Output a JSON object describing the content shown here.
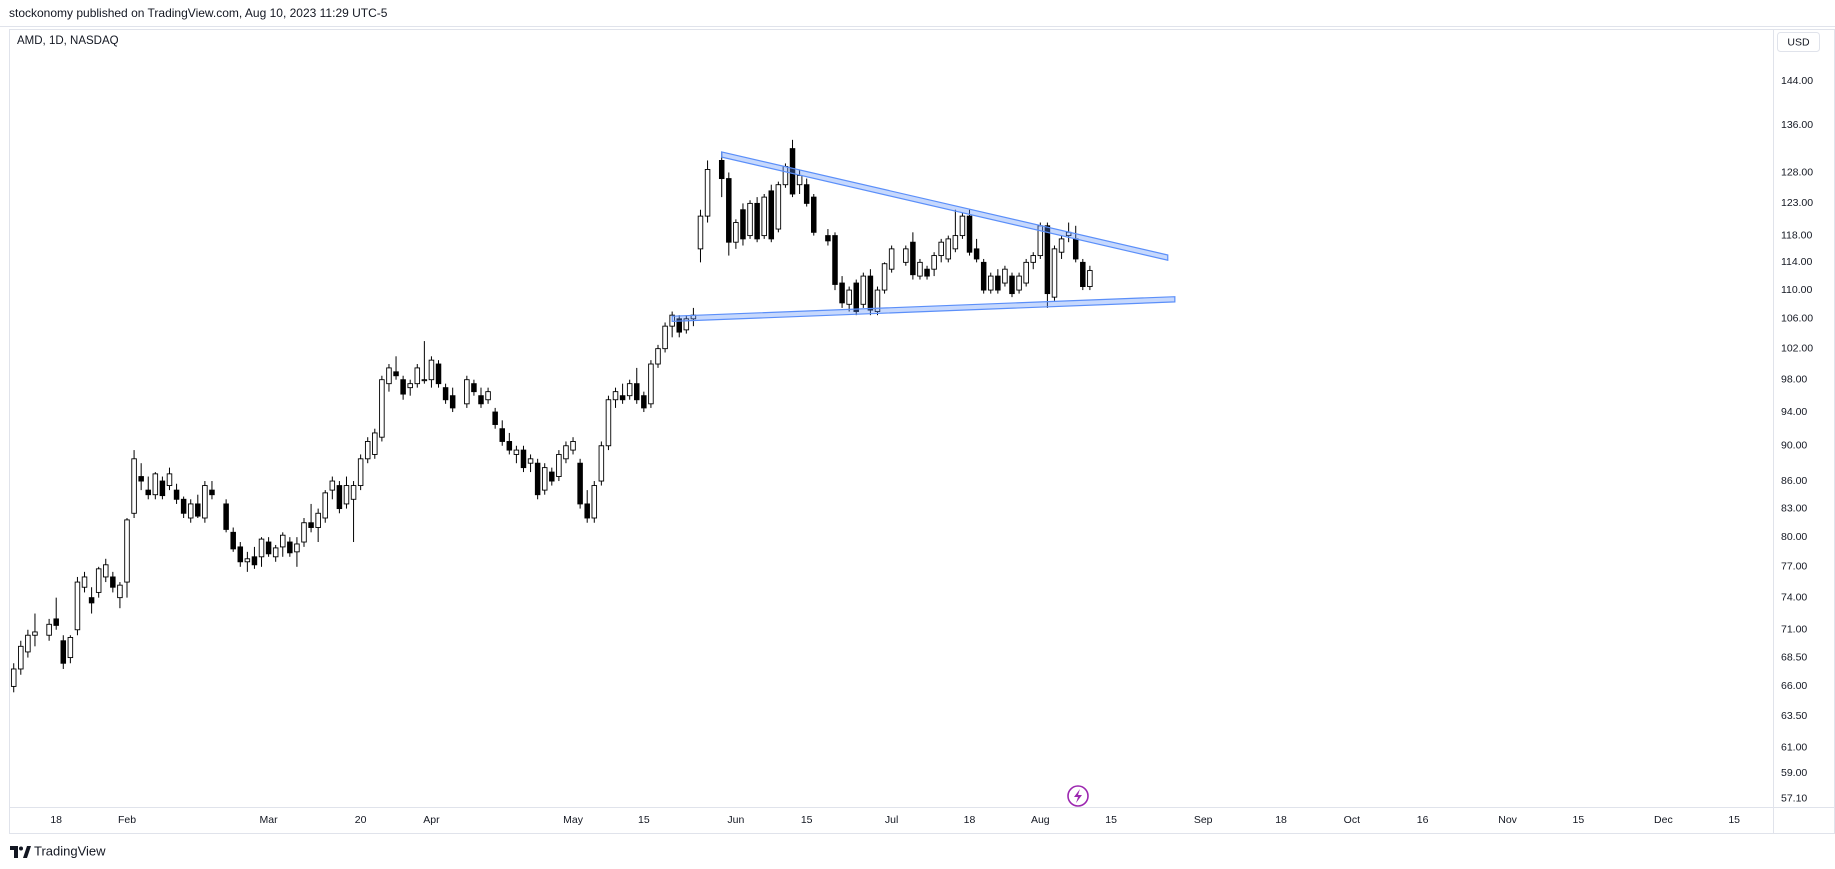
{
  "header": {
    "text": "stockonomy published on TradingView.com, Aug 10, 2023 11:29 UTC-5"
  },
  "chart_data": {
    "type": "candlestick",
    "title": "AMD, 1D, NASDAQ",
    "currency": "USD",
    "x": [
      "01-10",
      "01-11",
      "01-12",
      "01-13",
      "01-17",
      "01-18",
      "01-19",
      "01-20",
      "01-23",
      "01-24",
      "01-25",
      "01-26",
      "01-27",
      "01-30",
      "01-31",
      "02-01",
      "02-02",
      "02-03",
      "02-06",
      "02-07",
      "02-08",
      "02-09",
      "02-10",
      "02-13",
      "02-14",
      "02-15",
      "02-16",
      "02-17",
      "02-21",
      "02-22",
      "02-23",
      "02-24",
      "02-27",
      "02-28",
      "03-01",
      "03-02",
      "03-03",
      "03-06",
      "03-07",
      "03-08",
      "03-09",
      "03-10",
      "03-13",
      "03-14",
      "03-15",
      "03-16",
      "03-17",
      "03-20",
      "03-21",
      "03-22",
      "03-23",
      "03-24",
      "03-27",
      "03-28",
      "03-29",
      "03-30",
      "03-31",
      "04-03",
      "04-04",
      "04-05",
      "04-06",
      "04-10",
      "04-11",
      "04-12",
      "04-13",
      "04-14",
      "04-17",
      "04-18",
      "04-19",
      "04-20",
      "04-21",
      "04-24",
      "04-25",
      "04-26",
      "04-27",
      "04-28",
      "05-01",
      "05-02",
      "05-03",
      "05-04",
      "05-05",
      "05-08",
      "05-09",
      "05-10",
      "05-11",
      "05-12",
      "05-15",
      "05-16",
      "05-17",
      "05-18",
      "05-19",
      "05-22",
      "05-23",
      "05-24",
      "05-25",
      "05-26",
      "05-30",
      "05-31",
      "06-01",
      "06-02",
      "06-05",
      "06-06",
      "06-07",
      "06-08",
      "06-09",
      "06-12",
      "06-13",
      "06-14",
      "06-15",
      "06-16",
      "06-20",
      "06-21",
      "06-22",
      "06-23",
      "06-26",
      "06-27",
      "06-28",
      "06-29",
      "06-30",
      "07-03",
      "07-05",
      "07-06",
      "07-07",
      "07-10",
      "07-11",
      "07-12",
      "07-13",
      "07-14",
      "07-17",
      "07-18",
      "07-19",
      "07-20",
      "07-21",
      "07-24",
      "07-25",
      "07-26",
      "07-27",
      "07-28",
      "07-31",
      "08-01",
      "08-02",
      "08-03",
      "08-04",
      "08-07",
      "08-08",
      "08-09",
      "08-10"
    ],
    "open": [
      66,
      67.5,
      69,
      70.5,
      70.5,
      72,
      70,
      68.5,
      71,
      75,
      74,
      74.5,
      76,
      76,
      74,
      75.5,
      82.5,
      86.5,
      85,
      84.5,
      86,
      85.5,
      85,
      84,
      82,
      83.5,
      82,
      85,
      83.5,
      80.5,
      79,
      77.5,
      78,
      78,
      79.5,
      78,
      79,
      79.5,
      78.5,
      79.5,
      81.5,
      81,
      82,
      85,
      85.5,
      83.5,
      84,
      85.5,
      88.5,
      89,
      91,
      97.5,
      99,
      98,
      97,
      97.5,
      98,
      98,
      100,
      97,
      96,
      95,
      97.5,
      96,
      95.5,
      94,
      92,
      90.5,
      89,
      89.5,
      88,
      88,
      85,
      87,
      86.5,
      88.5,
      89.5,
      88,
      83.5,
      82,
      86,
      90,
      95.5,
      96,
      96,
      97.5,
      96,
      95,
      100,
      102,
      105,
      106,
      104.5,
      106,
      116,
      121,
      130,
      127,
      117,
      122,
      118,
      123,
      118,
      125,
      119,
      126,
      132,
      126,
      126,
      124,
      118,
      118,
      111,
      108,
      111,
      108,
      112,
      107,
      110,
      113,
      114,
      117,
      112,
      113,
      113,
      115,
      114.5,
      116,
      118,
      121,
      116,
      114,
      110,
      112,
      111,
      112,
      110,
      111,
      114,
      115,
      119.5,
      109,
      115.5,
      118,
      117.5,
      114,
      110.5
    ],
    "high": [
      68,
      70,
      71,
      72.5,
      72,
      74,
      70.5,
      70.5,
      76,
      76.5,
      75,
      77,
      77.8,
      76.5,
      75.5,
      82,
      89.5,
      88,
      86.5,
      87,
      86.5,
      87.5,
      85.7,
      84.3,
      84,
      84.5,
      86,
      86,
      84,
      81,
      79.5,
      78.5,
      79,
      80,
      80,
      79.2,
      80.5,
      80,
      80,
      82,
      83.5,
      83,
      85,
      86.5,
      86,
      86.5,
      86,
      89,
      91,
      92,
      98.5,
      100,
      101,
      98.5,
      98,
      100,
      103,
      101,
      100.5,
      97.5,
      97,
      98.5,
      98,
      97,
      97,
      94.5,
      93,
      91.5,
      90,
      90,
      89,
      88.5,
      88,
      87.5,
      89.5,
      90.5,
      91,
      88.5,
      85,
      86,
      90.5,
      96,
      97,
      97.5,
      98,
      99.5,
      96.5,
      100.5,
      102.5,
      105.5,
      107,
      106.5,
      106.5,
      107.5,
      122,
      130,
      131.5,
      128,
      120.5,
      123,
      123.5,
      124,
      124.5,
      126,
      126.5,
      129.5,
      133.5,
      128.5,
      127,
      124.5,
      119,
      118.5,
      112,
      110.5,
      111.5,
      112.5,
      113,
      110.5,
      114,
      116.5,
      116.5,
      118.5,
      114.5,
      113.5,
      115.5,
      117.5,
      118,
      122,
      121.5,
      122,
      117.5,
      114.5,
      112.5,
      113,
      113.5,
      112.5,
      112.5,
      114.5,
      115.5,
      120,
      120,
      116.5,
      118,
      120,
      119.5,
      114.5,
      113.5
    ],
    "low": [
      65.5,
      67,
      68.5,
      69.5,
      70,
      71,
      67.5,
      68,
      70.5,
      74.5,
      72.5,
      74,
      75.5,
      74.5,
      73,
      74,
      82,
      85,
      84,
      84,
      84,
      85,
      83.5,
      82,
      81.5,
      82,
      81.5,
      84,
      80.5,
      78.5,
      77,
      76.5,
      76.8,
      77,
      78,
      77.5,
      78,
      78,
      77,
      79,
      80.5,
      79.5,
      81.5,
      84,
      82.5,
      83,
      79.5,
      85,
      88,
      88.5,
      90.5,
      96.5,
      98,
      95.5,
      96,
      97,
      97.5,
      97,
      97,
      95,
      94,
      94.5,
      96,
      94.5,
      95,
      92,
      90,
      89,
      88,
      87,
      87,
      84,
      84.5,
      85.5,
      86,
      88,
      89,
      83,
      81.5,
      81.5,
      85.5,
      89.5,
      94.5,
      95,
      95.5,
      95,
      94,
      94.5,
      99.5,
      101.5,
      103.5,
      103.5,
      104,
      105,
      114,
      120,
      124,
      115,
      116,
      116.5,
      117.5,
      117,
      117.5,
      117,
      118.5,
      125.5,
      124,
      124.5,
      122.5,
      118,
      116.5,
      110,
      107.5,
      107,
      106.5,
      107.5,
      106.5,
      106.5,
      109.5,
      112.5,
      113.5,
      111.5,
      111.5,
      111.5,
      112,
      114,
      114,
      115.5,
      117.5,
      115,
      114,
      109.5,
      109.5,
      109.5,
      110.5,
      109,
      109.5,
      110.5,
      113,
      114.5,
      107.5,
      108.5,
      114.5,
      117,
      114,
      110,
      110
    ],
    "close": [
      67.5,
      69.5,
      70.5,
      70.8,
      71.5,
      71.4,
      68,
      70.3,
      75.5,
      76,
      73.5,
      76.8,
      77.2,
      75,
      75.2,
      81.8,
      88.5,
      86,
      84.5,
      86.8,
      84.4,
      86.8,
      84,
      82.5,
      83.5,
      82.2,
      85.5,
      84.5,
      80.8,
      78.8,
      77.5,
      77.8,
      77.2,
      79.8,
      78.3,
      78.9,
      80.2,
      78.4,
      79.3,
      81.5,
      81,
      82.5,
      84.7,
      86,
      83,
      85.5,
      85.5,
      88.5,
      90.5,
      91.5,
      98,
      99.5,
      98.5,
      96.2,
      97.5,
      99.5,
      98,
      100.5,
      97.5,
      95.5,
      94.5,
      98,
      96.5,
      95,
      96.5,
      92.5,
      90.5,
      89.5,
      89.5,
      87.5,
      88.5,
      84.5,
      87.5,
      86,
      89,
      90,
      90.5,
      83.5,
      82,
      85.5,
      90,
      95.5,
      96.5,
      95.5,
      97.5,
      95.5,
      94.5,
      100,
      102,
      105,
      106.5,
      104.2,
      106,
      106.5,
      121,
      128.5,
      127,
      117,
      120,
      117.5,
      123,
      117.5,
      124,
      117.5,
      126,
      129,
      124.5,
      127.5,
      123,
      118.5,
      117.2,
      110.8,
      108.2,
      110,
      107,
      112,
      107.2,
      110,
      113.8,
      116,
      116,
      112.2,
      114,
      112,
      115,
      117,
      117.5,
      118,
      121,
      115.5,
      114.5,
      110,
      112,
      110,
      113,
      109.5,
      112,
      114,
      115,
      119.5,
      109.5,
      116,
      117.5,
      118.5,
      114.5,
      110.5,
      112.8
    ],
    "up_color": "#ffffff",
    "down_color": "#000000",
    "log_scale": true,
    "ylim": [
      56.5,
      154
    ],
    "yticks": [
      {
        "value": 144,
        "label": "144.00"
      },
      {
        "value": 136,
        "label": "136.00"
      },
      {
        "value": 128,
        "label": "128.00"
      },
      {
        "value": 123,
        "label": "123.00"
      },
      {
        "value": 118,
        "label": "118.00"
      },
      {
        "value": 114,
        "label": "114.00"
      },
      {
        "value": 110,
        "label": "110.00"
      },
      {
        "value": 106,
        "label": "106.00"
      },
      {
        "value": 102,
        "label": "102.00"
      },
      {
        "value": 98,
        "label": "98.00"
      },
      {
        "value": 94,
        "label": "94.00"
      },
      {
        "value": 90,
        "label": "90.00"
      },
      {
        "value": 86,
        "label": "86.00"
      },
      {
        "value": 83,
        "label": "83.00"
      },
      {
        "value": 80,
        "label": "80.00"
      },
      {
        "value": 77,
        "label": "77.00"
      },
      {
        "value": 74,
        "label": "74.00"
      },
      {
        "value": 71,
        "label": "71.00"
      },
      {
        "value": 68.5,
        "label": "68.50"
      },
      {
        "value": 66,
        "label": "66.00"
      },
      {
        "value": 63.5,
        "label": "63.50"
      },
      {
        "value": 61,
        "label": "61.00"
      },
      {
        "value": 59,
        "label": "59.00"
      },
      {
        "value": 57.1,
        "label": "57.10"
      }
    ],
    "xticks": [
      {
        "value": "01-18",
        "label": "18"
      },
      {
        "value": "02-01",
        "label": "Feb"
      },
      {
        "value": "03-01",
        "label": "Mar"
      },
      {
        "value": "03-20",
        "label": "20"
      },
      {
        "value": "04-03",
        "label": "Apr"
      },
      {
        "value": "05-01",
        "label": "May"
      },
      {
        "value": "05-15",
        "label": "15"
      },
      {
        "value": "06-01",
        "label": "Jun"
      },
      {
        "value": "06-15",
        "label": "15"
      },
      {
        "value": "07-03",
        "label": "Jul"
      },
      {
        "value": "07-18",
        "label": "18"
      },
      {
        "value": "08-01",
        "label": "Aug"
      },
      {
        "value": "08-15",
        "label": "15"
      },
      {
        "value": "09-01",
        "label": "Sep"
      },
      {
        "value": "09-18",
        "label": "18"
      },
      {
        "value": "10-02",
        "label": "Oct"
      },
      {
        "value": "10-16",
        "label": "16"
      },
      {
        "value": "11-01",
        "label": "Nov"
      },
      {
        "value": "11-15",
        "label": "15"
      },
      {
        "value": "12-01",
        "label": "Dec"
      },
      {
        "value": "12-15",
        "label": "15"
      }
    ],
    "trendlines": [
      {
        "x": [
          "05-30",
          "08-25"
        ],
        "y": [
          131,
          114.7
        ]
      },
      {
        "x": [
          "05-19",
          "08-28"
        ],
        "y": [
          106,
          108.7
        ]
      }
    ],
    "trendline_color": "#5b8ff9"
  },
  "footer": {
    "brand": "TradingView"
  }
}
